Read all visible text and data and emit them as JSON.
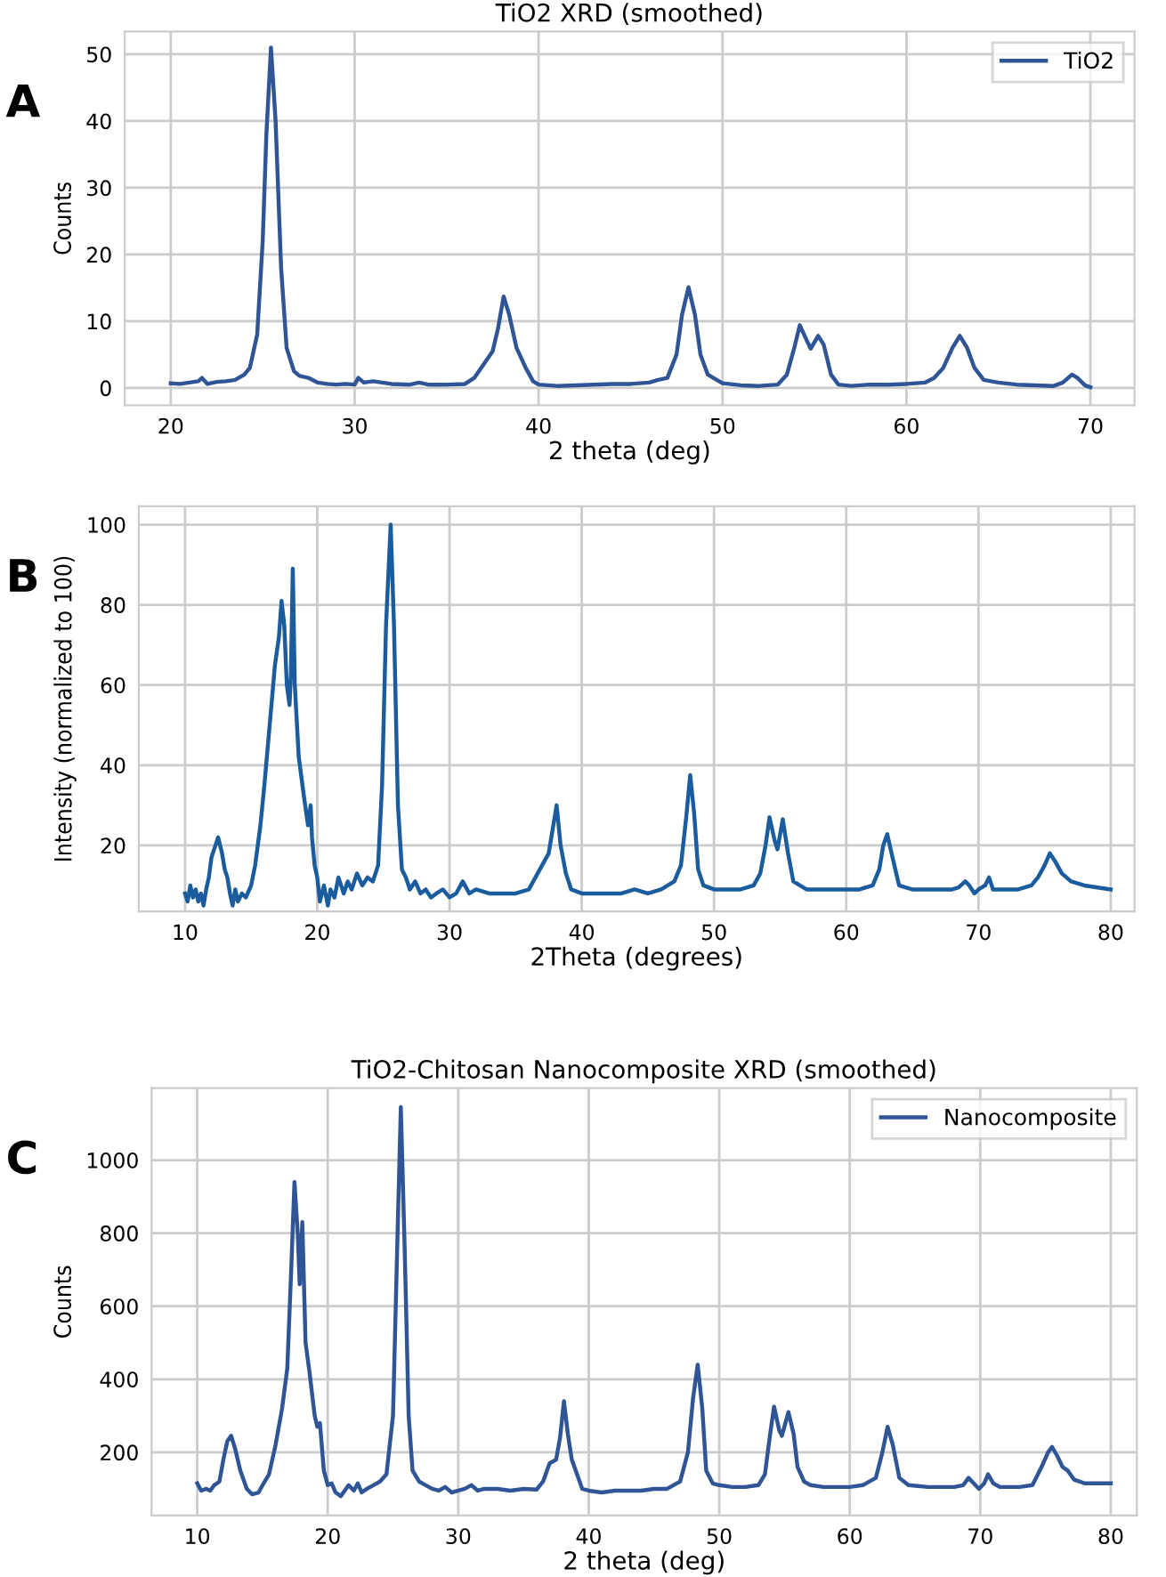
{
  "chart_data": [
    {
      "type": "line",
      "title": "TiO2 XRD (smoothed)",
      "xlabel": "2 theta (deg)",
      "ylabel": "Counts",
      "annotations": [
        "A"
      ],
      "xlim": [
        17.5,
        72.4
      ],
      "ylim": [
        -2.6,
        53.4
      ],
      "xticks": [
        20,
        30,
        40,
        50,
        60,
        70
      ],
      "yticks": [
        0,
        10,
        20,
        30,
        40,
        50
      ],
      "grid": true,
      "legend": "top right",
      "series": [
        {
          "name": "TiO2",
          "color": "#2f5597",
          "x": [
            20,
            20.5,
            21,
            21.5,
            21.7,
            22,
            22.5,
            23,
            23.5,
            24,
            24.3,
            24.7,
            25,
            25.2,
            25.45,
            25.7,
            26,
            26.3,
            26.7,
            27,
            27.5,
            28,
            28.5,
            29,
            29.5,
            30,
            30.2,
            30.5,
            31,
            31.5,
            32,
            33,
            33.5,
            34,
            35,
            36,
            36.5,
            37,
            37.5,
            37.8,
            38.1,
            38.4,
            38.8,
            39.3,
            39.7,
            40,
            41,
            42,
            43,
            44,
            45,
            46,
            46.5,
            47,
            47.5,
            47.8,
            48.15,
            48.5,
            48.8,
            49.2,
            49.5,
            50,
            51,
            52,
            53,
            53.5,
            53.9,
            54.2,
            54.6,
            54.8,
            55.2,
            55.5,
            55.9,
            56.3,
            57,
            58,
            59,
            60,
            61,
            61.5,
            62,
            62.5,
            62.9,
            63.3,
            63.7,
            64.2,
            65,
            66,
            67,
            68,
            68.5,
            69,
            69.3,
            69.7,
            70
          ],
          "values": [
            0.7,
            0.6,
            0.8,
            1.0,
            1.5,
            0.6,
            0.9,
            1.0,
            1.2,
            2.0,
            3.0,
            8,
            22,
            38,
            51,
            40,
            18,
            6,
            2.5,
            1.8,
            1.5,
            0.8,
            0.6,
            0.5,
            0.6,
            0.5,
            1.5,
            0.8,
            1.0,
            0.8,
            0.6,
            0.5,
            0.8,
            0.5,
            0.5,
            0.6,
            1.5,
            3.5,
            5.5,
            9,
            13.7,
            11,
            6,
            3,
            1,
            0.5,
            0.3,
            0.4,
            0.5,
            0.6,
            0.6,
            0.8,
            1.2,
            1.5,
            5,
            11,
            15.1,
            11,
            5,
            2,
            1.5,
            0.7,
            0.4,
            0.3,
            0.5,
            2,
            6,
            9.4,
            7,
            5.9,
            7.8,
            6.5,
            2,
            0.5,
            0.3,
            0.5,
            0.5,
            0.6,
            0.8,
            1.5,
            3,
            6,
            7.8,
            6,
            3,
            1.2,
            0.8,
            0.5,
            0.4,
            0.3,
            0.8,
            2.0,
            1.5,
            0.4,
            0.1
          ]
        }
      ]
    },
    {
      "type": "line",
      "xlabel": "2Theta (degrees)",
      "ylabel": "Intensity (normalized to 100)",
      "annotations": [
        "B"
      ],
      "xlim": [
        6.5,
        81.8
      ],
      "ylim": [
        3.5,
        104.6
      ],
      "xticks": [
        10,
        20,
        30,
        40,
        50,
        60,
        70,
        80
      ],
      "yticks": [
        20,
        40,
        60,
        80,
        100
      ],
      "grid": true,
      "series": [
        {
          "color": "#1a5c9e",
          "x": [
            10,
            10.2,
            10.4,
            10.6,
            10.8,
            11,
            11.2,
            11.4,
            11.6,
            11.8,
            12,
            12.2,
            12.5,
            12.8,
            13,
            13.2,
            13.4,
            13.6,
            13.8,
            14,
            14.3,
            14.6,
            15,
            15.3,
            15.7,
            16,
            16.4,
            16.8,
            17.1,
            17.3,
            17.5,
            17.7,
            17.9,
            18,
            18.15,
            18.3,
            18.6,
            19,
            19.3,
            19.5,
            19.6,
            19.8,
            20,
            20.2,
            20.5,
            20.8,
            21,
            21.3,
            21.6,
            22,
            22.3,
            22.6,
            23,
            23.4,
            23.8,
            24.2,
            24.6,
            24.9,
            25.2,
            25.55,
            25.8,
            26.1,
            26.4,
            26.7,
            27,
            27.4,
            27.8,
            28.2,
            28.6,
            29,
            29.5,
            30,
            30.5,
            31,
            31.5,
            32,
            33,
            34,
            35,
            36,
            36.5,
            37,
            37.5,
            37.8,
            38.1,
            38.4,
            38.8,
            39.2,
            40,
            41,
            42,
            43,
            44,
            45,
            46,
            47,
            47.5,
            47.9,
            48.2,
            48.5,
            48.8,
            49.2,
            50,
            51,
            52,
            53,
            53.5,
            53.9,
            54.2,
            54.6,
            54.8,
            55.2,
            55.6,
            56,
            57,
            58,
            59,
            60,
            61,
            62,
            62.5,
            62.8,
            63.1,
            63.5,
            64,
            65,
            66,
            67,
            68,
            68.5,
            69,
            69.3,
            69.7,
            70,
            70.5,
            70.8,
            71.1,
            72,
            73,
            74,
            74.5,
            75,
            75.4,
            75.8,
            76.3,
            77,
            78,
            79,
            80
          ],
          "values": [
            8,
            6,
            10,
            7,
            9,
            6,
            8,
            5,
            9,
            12,
            17,
            19,
            22,
            18,
            14,
            12,
            8,
            5,
            9,
            6,
            8,
            7,
            10,
            15,
            25,
            35,
            50,
            65,
            72,
            81,
            75,
            60,
            55,
            62,
            89,
            60,
            42,
            32,
            25,
            30,
            22,
            15,
            12,
            6,
            10,
            5,
            9,
            7,
            12,
            8,
            11,
            9,
            13,
            10,
            12,
            11,
            15,
            35,
            75,
            100,
            75,
            30,
            14,
            12,
            9,
            11,
            8,
            9,
            7,
            8,
            9,
            7,
            8,
            11,
            8,
            9,
            8,
            8,
            8,
            9,
            12,
            15,
            18,
            24,
            30,
            20,
            13,
            9,
            8,
            8,
            8,
            8,
            9,
            8,
            9,
            11,
            15,
            27,
            37.5,
            28,
            14,
            10,
            9,
            9,
            9,
            10,
            13,
            20,
            27,
            21,
            19,
            26.5,
            18,
            11,
            9,
            9,
            9,
            9,
            9,
            10,
            14,
            20,
            22.8,
            17,
            10,
            9,
            9,
            9,
            9,
            9.5,
            11,
            10,
            8,
            9,
            10,
            12,
            9,
            9,
            9,
            10,
            12,
            15,
            18,
            16,
            13,
            11,
            10,
            9.5,
            9
          ]
        }
      ]
    },
    {
      "type": "line",
      "title": "TiO2-Chitosan Nanocomposite XRD (smoothed)",
      "xlabel": "2 theta (deg)",
      "ylabel": "Counts",
      "annotations": [
        "C"
      ],
      "xlim": [
        6.5,
        82
      ],
      "ylim": [
        27,
        1197
      ],
      "xticks": [
        10,
        20,
        30,
        40,
        50,
        60,
        70,
        80
      ],
      "yticks": [
        200,
        400,
        600,
        800,
        1000
      ],
      "grid": true,
      "legend": "top right",
      "series": [
        {
          "name": "Nanocomposite",
          "color": "#2f5597",
          "x": [
            10,
            10.3,
            10.7,
            11,
            11.3,
            11.7,
            12,
            12.3,
            12.6,
            12.9,
            13.3,
            13.8,
            14.2,
            14.7,
            15,
            15.5,
            16,
            16.5,
            16.9,
            17.2,
            17.45,
            17.7,
            17.85,
            18.05,
            18.3,
            18.6,
            19,
            19.2,
            19.4,
            19.7,
            20,
            20.3,
            20.6,
            21,
            21.3,
            21.6,
            22,
            22.3,
            22.6,
            23,
            23.5,
            24,
            24.5,
            25,
            25.35,
            25.6,
            25.9,
            26.2,
            26.5,
            27,
            27.5,
            28,
            28.5,
            29,
            29.5,
            30,
            30.5,
            31,
            31.5,
            32,
            33,
            34,
            35,
            36,
            36.5,
            37,
            37.5,
            37.8,
            38.1,
            38.4,
            38.7,
            39.1,
            39.5,
            40,
            41,
            42,
            43,
            44,
            45,
            46,
            47,
            47.6,
            48,
            48.35,
            48.7,
            49,
            49.5,
            50,
            51,
            52,
            53,
            53.5,
            53.9,
            54.2,
            54.6,
            54.8,
            55.3,
            55.7,
            56,
            56.5,
            57,
            58,
            59,
            60,
            61,
            62,
            62.5,
            62.9,
            63.3,
            63.8,
            64.5,
            66,
            68,
            68.7,
            69.1,
            69.5,
            69.9,
            70.3,
            70.6,
            71,
            71.5,
            72,
            73,
            74,
            74.7,
            75.2,
            75.5,
            75.9,
            76.3,
            76.7,
            77.2,
            78,
            79,
            80
          ],
          "values": [
            115,
            95,
            100,
            95,
            110,
            120,
            180,
            230,
            245,
            210,
            150,
            100,
            85,
            90,
            110,
            140,
            220,
            320,
            430,
            700,
            940,
            800,
            660,
            830,
            500,
            420,
            300,
            270,
            280,
            150,
            110,
            115,
            90,
            80,
            95,
            110,
            95,
            115,
            90,
            100,
            110,
            120,
            140,
            300,
            800,
            1145,
            750,
            300,
            150,
            120,
            110,
            100,
            95,
            105,
            90,
            95,
            100,
            110,
            95,
            100,
            100,
            95,
            100,
            98,
            120,
            170,
            180,
            240,
            340,
            250,
            180,
            140,
            100,
            95,
            90,
            95,
            95,
            95,
            100,
            100,
            120,
            200,
            350,
            440,
            320,
            150,
            115,
            110,
            105,
            105,
            110,
            140,
            250,
            325,
            260,
            245,
            310,
            250,
            160,
            120,
            110,
            105,
            105,
            105,
            110,
            130,
            200,
            270,
            220,
            130,
            110,
            105,
            105,
            110,
            130,
            115,
            100,
            115,
            140,
            115,
            105,
            105,
            105,
            110,
            160,
            200,
            215,
            190,
            160,
            150,
            125,
            115,
            115,
            115
          ]
        }
      ]
    }
  ]
}
